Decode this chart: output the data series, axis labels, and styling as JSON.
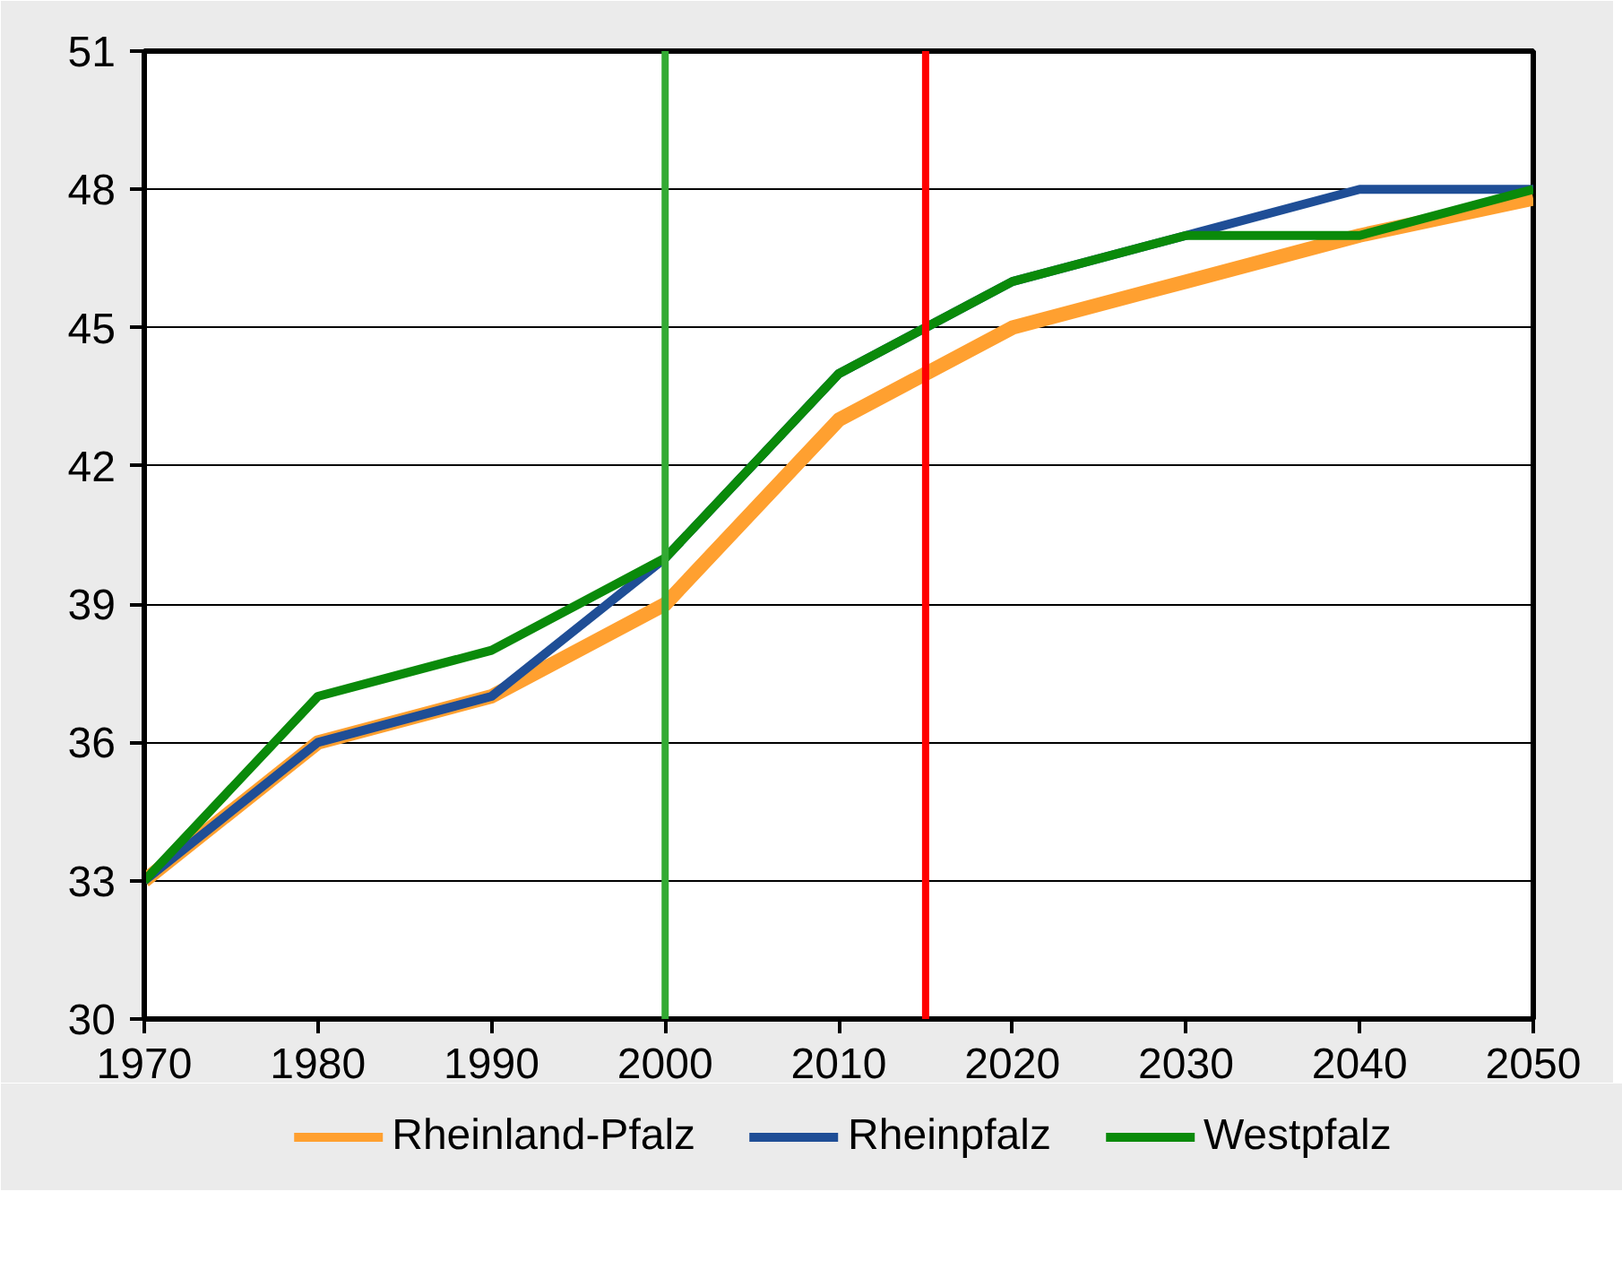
{
  "chart_data": {
    "type": "line",
    "x": [
      1970,
      1980,
      1990,
      2000,
      2010,
      2020,
      2030,
      2040,
      2050
    ],
    "series": [
      {
        "name": "Rheinland-Pfalz",
        "color": "#ffa030",
        "values": [
          33,
          36,
          37,
          39,
          43,
          45,
          46,
          47,
          47.8
        ]
      },
      {
        "name": "Rheinpfalz",
        "color": "#1f4e96",
        "values": [
          33,
          36,
          37,
          40,
          44,
          46,
          47,
          48,
          48
        ]
      },
      {
        "name": "Westpfalz",
        "color": "#0a8a0a",
        "values": [
          33,
          37,
          38,
          40,
          44,
          46,
          47,
          47,
          48
        ]
      }
    ],
    "xlim": [
      1970,
      2050
    ],
    "xticks": [
      1970,
      1980,
      1990,
      2000,
      2010,
      2020,
      2030,
      2040,
      2050
    ],
    "ylim": [
      30,
      51
    ],
    "yticks": [
      30,
      33,
      36,
      39,
      42,
      45,
      48,
      51
    ],
    "ref_lines": [
      {
        "axis": "x",
        "value": 2000,
        "color": "#33aa33"
      },
      {
        "axis": "x",
        "value": 2015,
        "color": "#ff0000"
      }
    ],
    "grid": "y",
    "legend": "bottom",
    "marker": "none",
    "line_style": "solid"
  }
}
